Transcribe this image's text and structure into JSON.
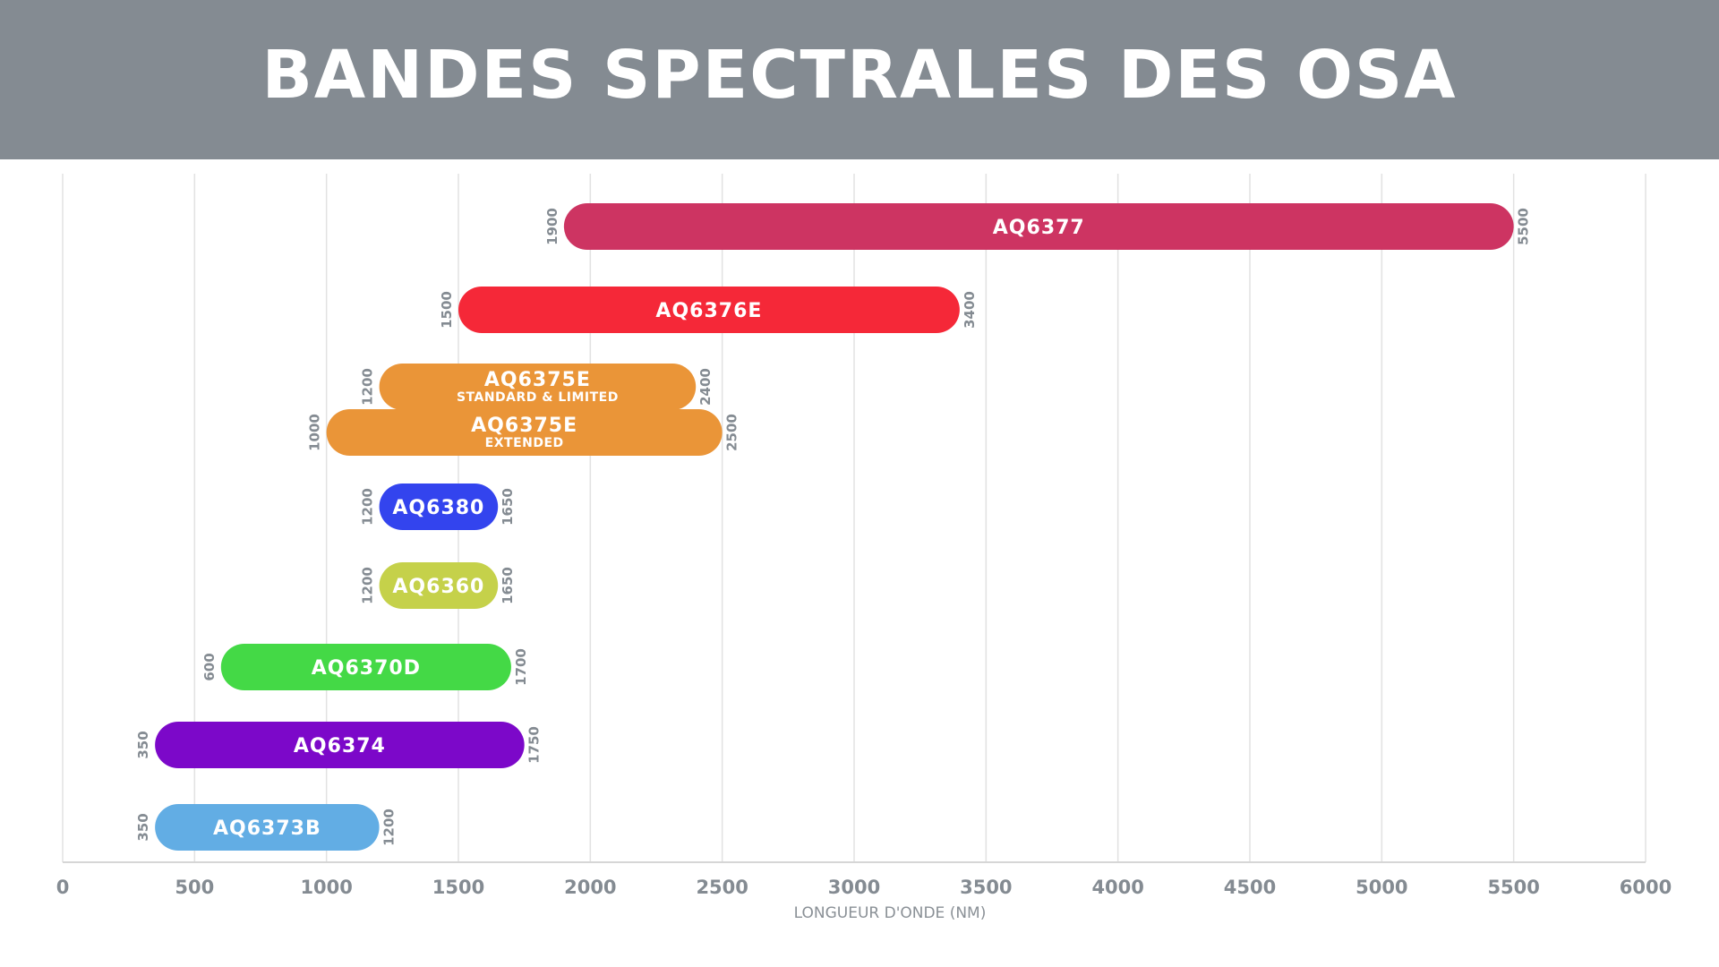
{
  "title": "BANDES SPECTRALES DES OSA",
  "colors": {
    "header_bg": "#848b92",
    "title_text": "#ffffff",
    "axis_text": "#848b92"
  },
  "chart_data": {
    "type": "bar",
    "orientation": "horizontal-range",
    "xlabel": "LONGUEUR D'ONDE (NM)",
    "ylabel": "",
    "xlim": [
      0,
      6000
    ],
    "x_ticks": [
      0,
      500,
      1000,
      1500,
      2000,
      2500,
      3000,
      3500,
      4000,
      4500,
      5000,
      5500,
      6000
    ],
    "grid": true,
    "series": [
      {
        "name": "AQ6377",
        "sublabel": "",
        "start": 1900,
        "end": 5500,
        "color": "#cd3462"
      },
      {
        "name": "AQ6376E",
        "sublabel": "",
        "start": 1500,
        "end": 3400,
        "color": "#f52838"
      },
      {
        "name": "AQ6375E",
        "sublabel": "STANDARD & LIMITED",
        "start": 1200,
        "end": 2400,
        "color": "#ea9538"
      },
      {
        "name": "AQ6375E",
        "sublabel": "EXTENDED",
        "start": 1000,
        "end": 2500,
        "color": "#ea9538"
      },
      {
        "name": "AQ6380",
        "sublabel": "",
        "start": 1200,
        "end": 1650,
        "color": "#3344ee"
      },
      {
        "name": "AQ6360",
        "sublabel": "",
        "start": 1200,
        "end": 1650,
        "color": "#c5d14a"
      },
      {
        "name": "AQ6370D",
        "sublabel": "",
        "start": 600,
        "end": 1700,
        "color": "#44d946"
      },
      {
        "name": "AQ6374",
        "sublabel": "",
        "start": 350,
        "end": 1750,
        "color": "#7c08c9"
      },
      {
        "name": "AQ6373B",
        "sublabel": "",
        "start": 350,
        "end": 1200,
        "color": "#62ade4"
      }
    ]
  }
}
